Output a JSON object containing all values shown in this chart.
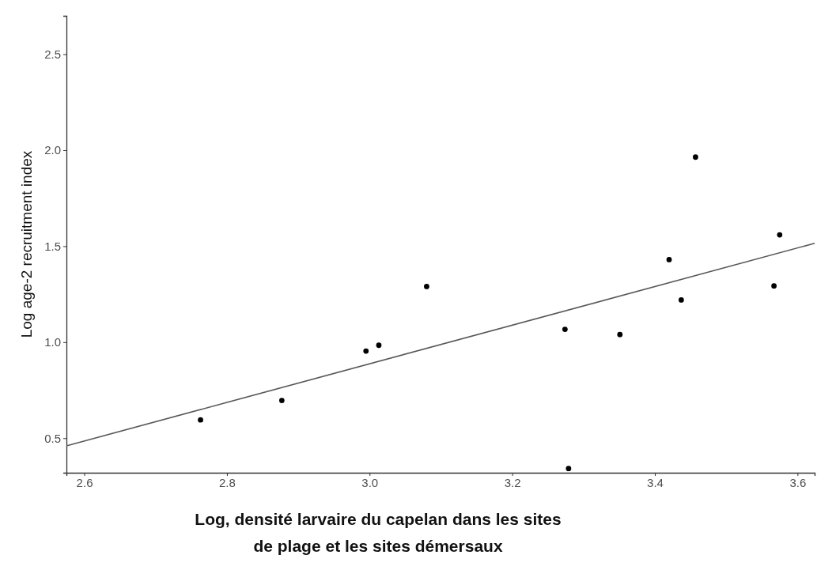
{
  "chart_data": {
    "type": "scatter",
    "xlabel": "Log, densité larvaire du capelan dans les sites\nde plage et les sites démersaux",
    "ylabel": "Log age-2 recruitment index",
    "xlim": [
      2.575,
      3.624
    ],
    "ylim": [
      0.32,
      2.7
    ],
    "xticks": [
      2.6,
      2.8,
      {
        "value": 3,
        "label": "3.0"
      },
      3.2,
      3.4,
      3.6
    ],
    "yticks": [
      0.5,
      {
        "value": 1,
        "label": "1.0"
      },
      1.5,
      {
        "value": 2,
        "label": "2.0"
      },
      2.5
    ],
    "grid": false,
    "marker": "circle",
    "series": [
      {
        "color": "#000000",
        "x": [
          2.763,
          2.877,
          2.995,
          3.013,
          3.08,
          3.274,
          3.279,
          3.351,
          3.42,
          3.437,
          3.457,
          3.567,
          3.575
        ],
        "values": [
          0.595,
          0.696,
          0.954,
          0.984,
          1.29,
          1.067,
          0.342,
          1.04,
          1.43,
          1.22,
          1.964,
          1.293,
          1.559
        ]
      },
      {
        "type": "line",
        "color": "#595959",
        "line_style": "solid",
        "marker": "none",
        "x": [
          2.575,
          3.624
        ],
        "values": [
          0.46,
          1.515
        ]
      }
    ]
  }
}
